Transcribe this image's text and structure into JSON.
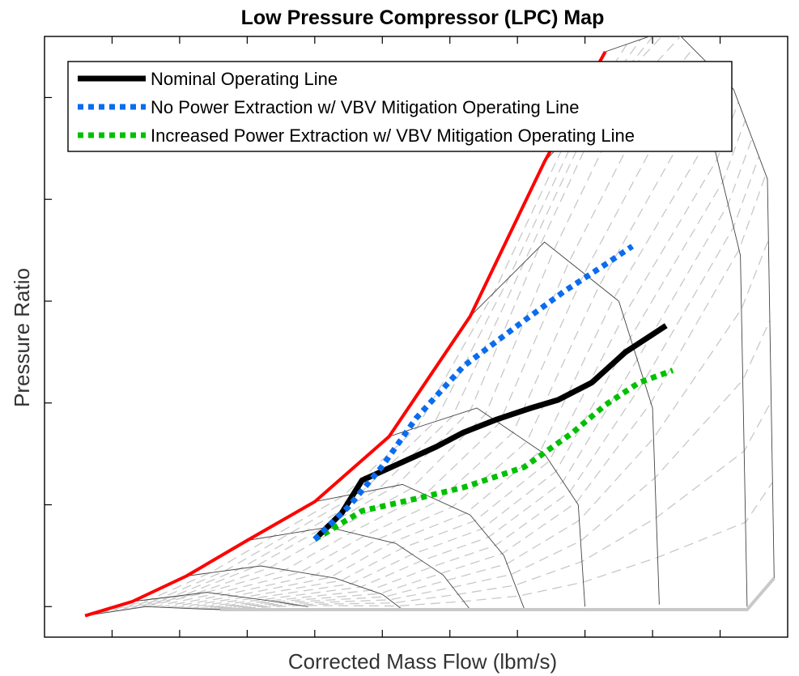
{
  "chart_data": {
    "type": "line",
    "title": "Low Pressure Compressor (LPC) Map",
    "xlabel": "Corrected Mass Flow (lbm/s)",
    "ylabel": "Pressure Ratio",
    "xlim": [
      0,
      11
    ],
    "ylim": [
      0.7,
      6.6
    ],
    "x_ticks": [
      1,
      2,
      3,
      4,
      5,
      6,
      7,
      8,
      9,
      10
    ],
    "y_ticks": [
      1,
      2,
      3,
      4,
      5,
      6
    ],
    "tick_labels_shown": false,
    "grid": false,
    "legend_position": "top-left",
    "series": [
      {
        "name": "Nominal Operating Line",
        "style": "solid",
        "color": "#000000",
        "x": [
          4.0,
          4.4,
          4.7,
          5.3,
          5.8,
          6.2,
          6.7,
          7.2,
          7.6,
          8.1,
          8.6,
          9.2
        ],
        "y": [
          1.66,
          1.92,
          2.24,
          2.42,
          2.57,
          2.71,
          2.84,
          2.95,
          3.03,
          3.2,
          3.5,
          3.76
        ]
      },
      {
        "name": "No Power Extraction w/ VBV Mitigation Operating Line",
        "style": "dotted",
        "color": "#0a6cf0",
        "x": [
          4.0,
          4.5,
          5.0,
          5.5,
          6.2,
          7.0,
          7.7,
          8.3,
          8.7
        ],
        "y": [
          1.66,
          1.98,
          2.38,
          2.85,
          3.36,
          3.76,
          4.1,
          4.36,
          4.54
        ]
      },
      {
        "name": "Increased Power Extraction w/ VBV Mitigation Operating Line",
        "style": "dotted",
        "color": "#00c000",
        "x": [
          4.0,
          4.7,
          5.5,
          6.2,
          7.1,
          7.8,
          8.3,
          8.8,
          9.3
        ],
        "y": [
          1.66,
          1.94,
          2.06,
          2.17,
          2.37,
          2.7,
          2.98,
          3.2,
          3.32
        ]
      },
      {
        "name": "",
        "style": "solid",
        "color": "#ff0000",
        "x": [
          0.6,
          1.3,
          2.1,
          3.0,
          4.0,
          5.1,
          6.3,
          7.4,
          8.3
        ],
        "y": [
          0.91,
          1.05,
          1.3,
          1.65,
          2.03,
          2.67,
          3.85,
          5.37,
          6.45
        ]
      }
    ],
    "speed_lines": [
      {
        "x": [
          0.6,
          1.5,
          2.2,
          2.6
        ],
        "y": [
          0.91,
          1.0,
          0.98,
          0.97
        ]
      },
      {
        "x": [
          1.3,
          2.4,
          3.3,
          3.9
        ],
        "y": [
          1.05,
          1.14,
          1.06,
          1.0
        ]
      },
      {
        "x": [
          2.1,
          3.2,
          4.3,
          5.0,
          5.3
        ],
        "y": [
          1.3,
          1.4,
          1.28,
          1.12,
          0.97
        ]
      },
      {
        "x": [
          3.0,
          4.2,
          5.2,
          5.9,
          6.3
        ],
        "y": [
          1.65,
          1.78,
          1.62,
          1.31,
          0.97
        ]
      },
      {
        "x": [
          4.0,
          5.3,
          6.3,
          6.8,
          7.1
        ],
        "y": [
          2.03,
          2.2,
          1.9,
          1.5,
          0.98
        ]
      },
      {
        "x": [
          5.1,
          6.4,
          7.4,
          7.9,
          8.0
        ],
        "y": [
          2.67,
          2.95,
          2.5,
          2.0,
          1.0
        ]
      },
      {
        "x": [
          6.3,
          7.4,
          8.5,
          9.0,
          9.1
        ],
        "y": [
          3.85,
          4.58,
          4.0,
          2.95,
          1.02
        ]
      },
      {
        "x": [
          7.4,
          8.5,
          9.9,
          10.3,
          10.4
        ],
        "y": [
          5.37,
          6.15,
          5.55,
          4.45,
          1.0
        ]
      },
      {
        "x": [
          8.3,
          9.3,
          10.2,
          10.7,
          10.8
        ],
        "y": [
          6.45,
          6.68,
          6.08,
          5.2,
          1.28
        ]
      }
    ],
    "efficiency_lines_count": 18
  }
}
